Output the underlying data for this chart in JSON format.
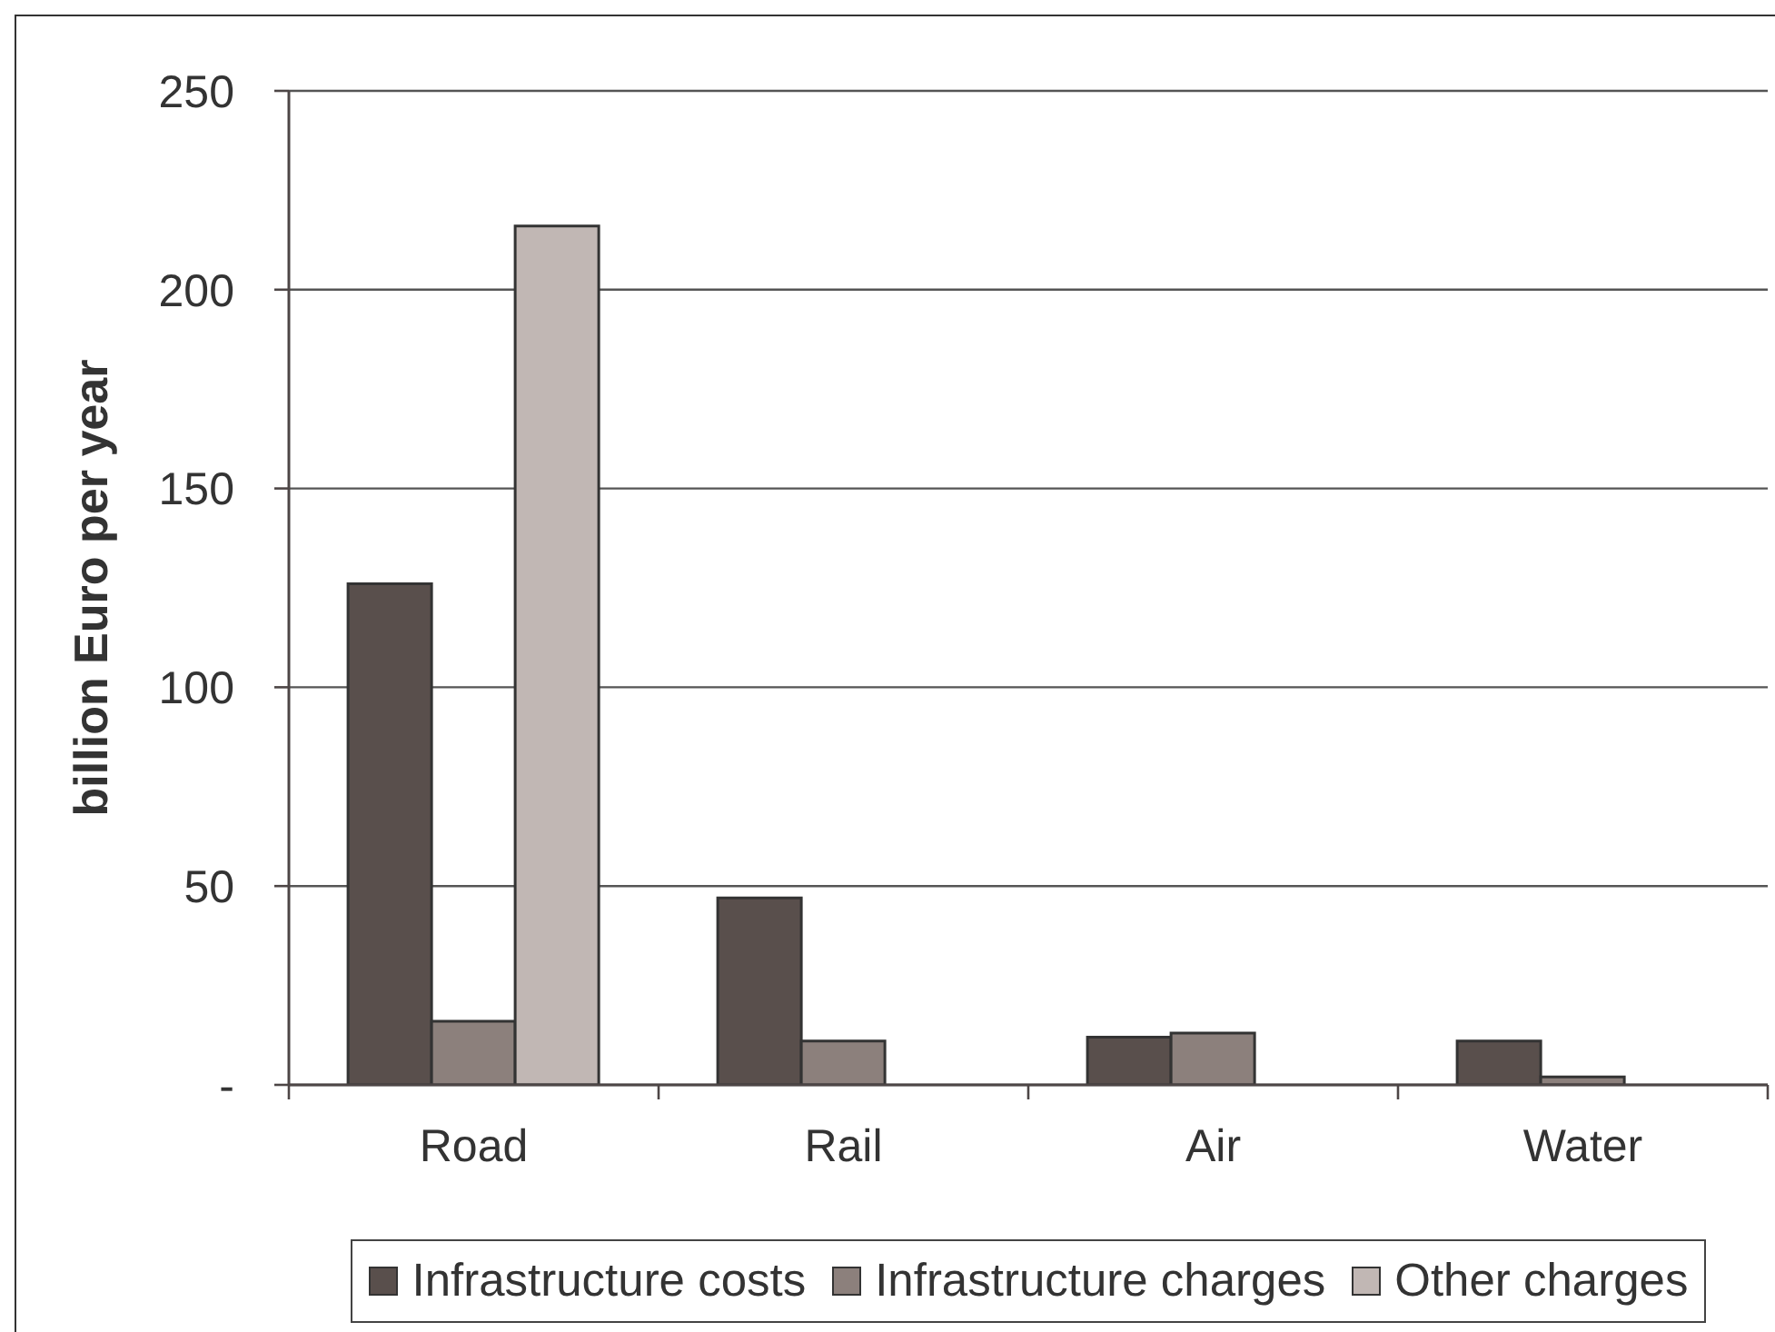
{
  "chart_data": {
    "type": "bar",
    "categories": [
      "Road",
      "Rail",
      "Air",
      "Water"
    ],
    "series": [
      {
        "name": "Infrastructure costs",
        "color": "#594f4c",
        "values": [
          126,
          47,
          12,
          11
        ]
      },
      {
        "name": "Infrastructure charges",
        "color": "#8c807c",
        "values": [
          16,
          11,
          13,
          2
        ]
      },
      {
        "name": "Other charges",
        "color": "#c1b7b4",
        "values": [
          216,
          null,
          null,
          null
        ]
      }
    ],
    "ylabel": "billion Euro per year",
    "ylim": [
      0,
      250
    ],
    "yticks": [
      {
        "value": 0,
        "label": "-"
      },
      50,
      100,
      150,
      200,
      250
    ],
    "grid": "y",
    "legend": "bottom"
  }
}
